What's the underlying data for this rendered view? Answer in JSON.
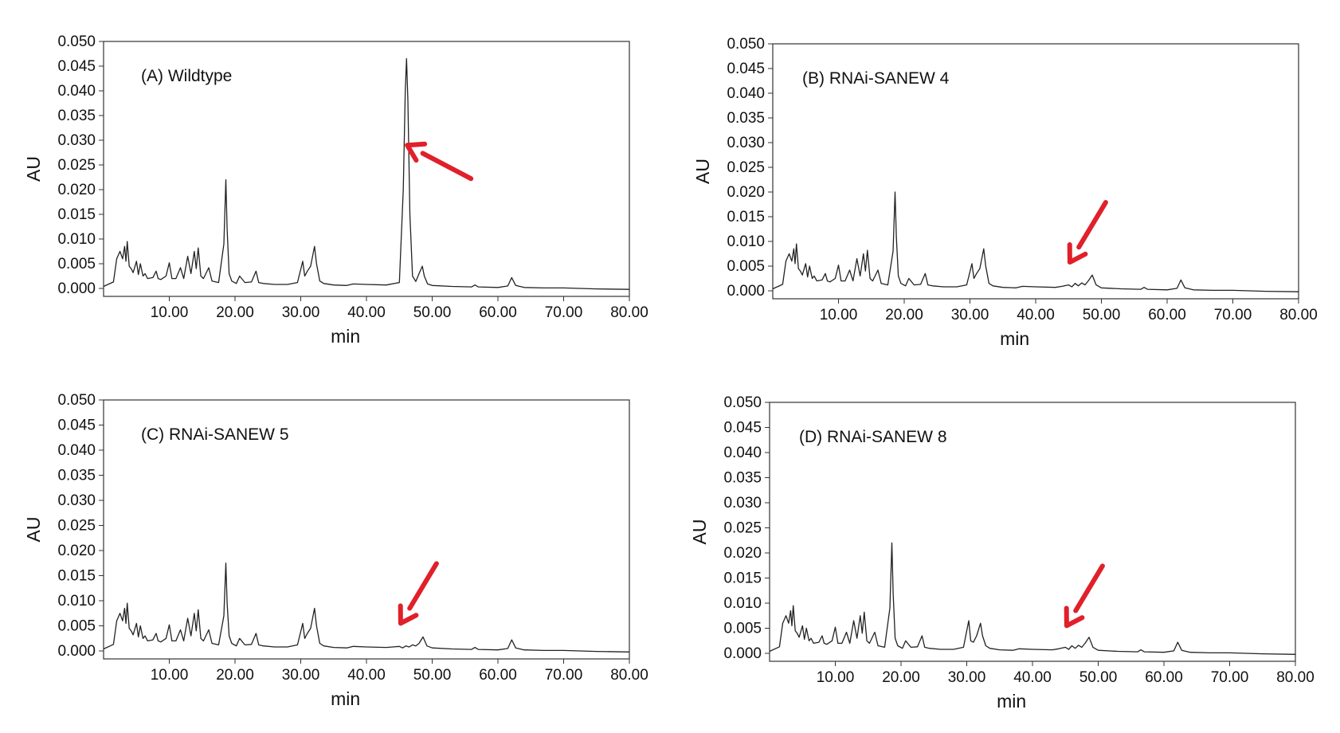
{
  "chart_data": [
    {
      "type": "line",
      "title": "(A) Wildtype",
      "xlabel": "min",
      "ylabel": "AU",
      "xlim": [
        0,
        80
      ],
      "ylim": [
        0,
        0.05
      ],
      "xticks": [
        "10.00",
        "20.00",
        "30.00",
        "40.00",
        "50.00",
        "60.00",
        "70.00",
        "80.00"
      ],
      "yticks": [
        "0.000",
        "0.005",
        "0.010",
        "0.015",
        "0.020",
        "0.025",
        "0.030",
        "0.035",
        "0.040",
        "0.045",
        "0.050"
      ],
      "grid": false,
      "annotation": {
        "type": "arrow",
        "color": "#e0202a",
        "target_x": 46.2,
        "target_y": 0.029
      },
      "series": [
        {
          "x": [
            0,
            1.5,
            2,
            2.5,
            2.9,
            3.2,
            3.4,
            3.6,
            3.9,
            4.2,
            4.5,
            5,
            5.3,
            5.6,
            6,
            6.3,
            6.7,
            7.5,
            8,
            8.3,
            8.7,
            9.5,
            10,
            10.4,
            11,
            11.7,
            12.2,
            12.8,
            13.3,
            13.8,
            14.1,
            14.4,
            14.8,
            15.2,
            16,
            16.5,
            17.5,
            18.3,
            18.6,
            18.8,
            19.1,
            19.5,
            20.2,
            20.7,
            21.5,
            22.5,
            23.2,
            23.6,
            24.3,
            26,
            28,
            29.5,
            30.3,
            30.6,
            31,
            31.5,
            32.1,
            32.4,
            32.9,
            33.5,
            35,
            37,
            38,
            40,
            43,
            45,
            45.6,
            45.9,
            46.1,
            46.3,
            46.6,
            47,
            47.5,
            48,
            48.5,
            48.8,
            49.3,
            50,
            53,
            56,
            56.5,
            57,
            60,
            61.5,
            62.1,
            62.7,
            64,
            67,
            70,
            75,
            80
          ],
          "y": [
            0.0004,
            0.0013,
            0.006,
            0.0075,
            0.006,
            0.0085,
            0.0055,
            0.0095,
            0.0045,
            0.004,
            0.0032,
            0.0055,
            0.0028,
            0.005,
            0.0025,
            0.003,
            0.002,
            0.0022,
            0.0035,
            0.002,
            0.0018,
            0.0025,
            0.0052,
            0.002,
            0.002,
            0.0042,
            0.002,
            0.0065,
            0.003,
            0.0075,
            0.004,
            0.0082,
            0.0025,
            0.002,
            0.0042,
            0.0015,
            0.0012,
            0.009,
            0.022,
            0.012,
            0.003,
            0.0015,
            0.001,
            0.0025,
            0.0012,
            0.0013,
            0.0035,
            0.0012,
            0.001,
            0.0008,
            0.0008,
            0.0012,
            0.0055,
            0.0025,
            0.0035,
            0.0045,
            0.0085,
            0.005,
            0.0015,
            0.001,
            0.0007,
            0.0006,
            0.0009,
            0.0008,
            0.0007,
            0.0012,
            0.02,
            0.04,
            0.0465,
            0.038,
            0.015,
            0.0025,
            0.0014,
            0.003,
            0.0045,
            0.0025,
            0.0009,
            0.0006,
            0.0004,
            0.0003,
            0.0007,
            0.0003,
            0.0002,
            0.0005,
            0.0022,
            0.0006,
            0.0002,
            0.0001,
            0.0001,
            -0.0001,
            -0.0002
          ]
        }
      ]
    },
    {
      "type": "line",
      "title": "(B) RNAi-SANEW 4",
      "xlabel": "min",
      "ylabel": "AU",
      "xlim": [
        0,
        80
      ],
      "ylim": [
        0,
        0.05
      ],
      "xticks": [
        "10.00",
        "20.00",
        "30.00",
        "40.00",
        "50.00",
        "60.00",
        "70.00",
        "80.00"
      ],
      "yticks": [
        "0.000",
        "0.005",
        "0.010",
        "0.015",
        "0.020",
        "0.025",
        "0.030",
        "0.035",
        "0.040",
        "0.045",
        "0.050"
      ],
      "grid": false,
      "annotation": {
        "type": "arrow",
        "color": "#e0202a",
        "target_x": 45.2,
        "target_y": 0.0058
      },
      "series": [
        {
          "x": [
            0,
            1.5,
            2,
            2.5,
            2.9,
            3.2,
            3.4,
            3.6,
            3.9,
            4.2,
            4.5,
            5,
            5.3,
            5.6,
            6,
            6.3,
            6.7,
            7.5,
            8,
            8.3,
            8.7,
            9.5,
            10,
            10.4,
            11,
            11.7,
            12.2,
            12.8,
            13.3,
            13.8,
            14.1,
            14.4,
            14.8,
            15.2,
            16,
            16.5,
            17.5,
            18.3,
            18.6,
            18.8,
            19.1,
            19.5,
            20.2,
            20.7,
            21.5,
            22.5,
            23.2,
            23.6,
            24.3,
            26,
            28,
            29.5,
            30.3,
            30.6,
            31,
            31.5,
            32.1,
            32.4,
            32.9,
            33.5,
            35,
            37,
            38,
            40,
            43,
            44,
            45,
            45.5,
            46,
            46.5,
            47,
            47.5,
            48,
            48.6,
            49.2,
            50,
            53,
            56,
            56.5,
            57,
            60,
            61.5,
            62.1,
            62.7,
            64,
            67,
            70,
            75,
            80
          ],
          "y": [
            0.0004,
            0.0013,
            0.006,
            0.0075,
            0.006,
            0.0085,
            0.0055,
            0.0095,
            0.0045,
            0.004,
            0.0032,
            0.0055,
            0.0028,
            0.005,
            0.0025,
            0.003,
            0.002,
            0.0022,
            0.0035,
            0.002,
            0.0018,
            0.0025,
            0.0052,
            0.002,
            0.002,
            0.0042,
            0.002,
            0.0065,
            0.003,
            0.0075,
            0.004,
            0.0082,
            0.0025,
            0.002,
            0.0042,
            0.0015,
            0.0012,
            0.008,
            0.02,
            0.011,
            0.003,
            0.0015,
            0.001,
            0.0025,
            0.0012,
            0.0013,
            0.0035,
            0.0012,
            0.001,
            0.0008,
            0.0008,
            0.0012,
            0.0055,
            0.0025,
            0.0035,
            0.0045,
            0.0085,
            0.005,
            0.0015,
            0.001,
            0.0007,
            0.0006,
            0.0009,
            0.0008,
            0.0007,
            0.0009,
            0.0012,
            0.0008,
            0.0015,
            0.001,
            0.0016,
            0.0012,
            0.002,
            0.0032,
            0.0012,
            0.0006,
            0.0004,
            0.0003,
            0.0007,
            0.0003,
            0.0002,
            0.0005,
            0.0022,
            0.0006,
            0.0002,
            0.0001,
            0.0001,
            -0.0001,
            -0.0002
          ]
        }
      ]
    },
    {
      "type": "line",
      "title": "(C) RNAi-SANEW 5",
      "xlabel": "min",
      "ylabel": "AU",
      "xlim": [
        0,
        80
      ],
      "ylim": [
        0,
        0.05
      ],
      "xticks": [
        "10.00",
        "20.00",
        "30.00",
        "40.00",
        "50.00",
        "60.00",
        "70.00",
        "80.00"
      ],
      "yticks": [
        "0.000",
        "0.005",
        "0.010",
        "0.015",
        "0.020",
        "0.025",
        "0.030",
        "0.035",
        "0.040",
        "0.045",
        "0.050"
      ],
      "grid": false,
      "annotation": {
        "type": "arrow",
        "color": "#e0202a",
        "target_x": 45.2,
        "target_y": 0.0055
      },
      "series": [
        {
          "x": [
            0,
            1.5,
            2,
            2.5,
            2.9,
            3.2,
            3.4,
            3.6,
            3.9,
            4.2,
            4.5,
            5,
            5.3,
            5.6,
            6,
            6.3,
            6.7,
            7.5,
            8,
            8.3,
            8.7,
            9.5,
            10,
            10.4,
            11,
            11.7,
            12.2,
            12.8,
            13.3,
            13.8,
            14.1,
            14.4,
            14.8,
            15.2,
            16,
            16.5,
            17.5,
            18.3,
            18.6,
            18.8,
            19.1,
            19.5,
            20.2,
            20.7,
            21.5,
            22.5,
            23.2,
            23.6,
            24.3,
            26,
            28,
            29.5,
            30.3,
            30.6,
            31,
            31.5,
            32.1,
            32.4,
            32.9,
            33.5,
            35,
            37,
            38,
            40,
            43,
            44,
            45,
            45.5,
            46,
            46.5,
            47,
            47.5,
            48,
            48.6,
            49.2,
            50,
            53,
            56,
            56.5,
            57,
            60,
            61.5,
            62.1,
            62.7,
            64,
            67,
            70,
            75,
            80
          ],
          "y": [
            0.0004,
            0.0013,
            0.006,
            0.0075,
            0.006,
            0.0085,
            0.0055,
            0.0095,
            0.0045,
            0.004,
            0.0032,
            0.0055,
            0.0028,
            0.005,
            0.0025,
            0.003,
            0.002,
            0.0022,
            0.0035,
            0.002,
            0.0018,
            0.0025,
            0.0052,
            0.002,
            0.002,
            0.0042,
            0.002,
            0.0065,
            0.003,
            0.0075,
            0.004,
            0.0082,
            0.0025,
            0.002,
            0.0042,
            0.0015,
            0.0012,
            0.007,
            0.0175,
            0.0095,
            0.003,
            0.0015,
            0.001,
            0.0025,
            0.0012,
            0.0013,
            0.0035,
            0.0012,
            0.001,
            0.0008,
            0.0008,
            0.0012,
            0.0055,
            0.0025,
            0.0035,
            0.0045,
            0.0085,
            0.005,
            0.0015,
            0.001,
            0.0007,
            0.0006,
            0.0009,
            0.0008,
            0.0007,
            0.0008,
            0.0009,
            0.0006,
            0.001,
            0.0008,
            0.0012,
            0.001,
            0.0015,
            0.0028,
            0.001,
            0.0006,
            0.0004,
            0.0003,
            0.0007,
            0.0003,
            0.0002,
            0.0005,
            0.0022,
            0.0006,
            0.0002,
            0.0001,
            0.0001,
            -0.0001,
            -0.0002
          ]
        }
      ]
    },
    {
      "type": "line",
      "title": "(D) RNAi-SANEW 8",
      "xlabel": "min",
      "ylabel": "AU",
      "xlim": [
        0,
        80
      ],
      "ylim": [
        0,
        0.05
      ],
      "xticks": [
        "10.00",
        "20.00",
        "30.00",
        "40.00",
        "50.00",
        "60.00",
        "70.00",
        "80.00"
      ],
      "yticks": [
        "0.000",
        "0.005",
        "0.010",
        "0.015",
        "0.020",
        "0.025",
        "0.030",
        "0.035",
        "0.040",
        "0.045",
        "0.050"
      ],
      "grid": false,
      "annotation": {
        "type": "arrow",
        "color": "#e0202a",
        "target_x": 45.2,
        "target_y": 0.0055
      },
      "series": [
        {
          "x": [
            0,
            1.5,
            2,
            2.5,
            2.9,
            3.2,
            3.4,
            3.6,
            3.9,
            4.2,
            4.5,
            5,
            5.3,
            5.6,
            6,
            6.3,
            6.7,
            7.5,
            8,
            8.3,
            8.7,
            9.5,
            10,
            10.4,
            11,
            11.7,
            12.2,
            12.8,
            13.3,
            13.8,
            14.1,
            14.4,
            14.8,
            15.2,
            16,
            16.5,
            17.5,
            18.3,
            18.6,
            18.8,
            19.1,
            19.5,
            20.2,
            20.7,
            21.5,
            22.5,
            23.2,
            23.6,
            24.3,
            26,
            28,
            29.5,
            30.3,
            30.6,
            31,
            31.5,
            32.1,
            32.4,
            32.9,
            33.5,
            35,
            37,
            38,
            40,
            43,
            44,
            45,
            45.5,
            46,
            46.5,
            47,
            47.5,
            48,
            48.6,
            49.2,
            50,
            53,
            56,
            56.5,
            57,
            60,
            61.5,
            62.1,
            62.7,
            64,
            67,
            70,
            75,
            80
          ],
          "y": [
            0.0004,
            0.0013,
            0.006,
            0.0075,
            0.006,
            0.0085,
            0.0055,
            0.0095,
            0.0045,
            0.004,
            0.0032,
            0.0055,
            0.0028,
            0.005,
            0.0025,
            0.003,
            0.002,
            0.0022,
            0.0035,
            0.002,
            0.0018,
            0.0025,
            0.0052,
            0.002,
            0.002,
            0.0042,
            0.002,
            0.0065,
            0.003,
            0.0075,
            0.004,
            0.0082,
            0.0025,
            0.002,
            0.0042,
            0.0015,
            0.0012,
            0.009,
            0.022,
            0.012,
            0.003,
            0.0015,
            0.001,
            0.0025,
            0.0012,
            0.0013,
            0.0035,
            0.0012,
            0.001,
            0.0008,
            0.0008,
            0.0012,
            0.0065,
            0.0025,
            0.0022,
            0.0035,
            0.006,
            0.0035,
            0.0015,
            0.001,
            0.0007,
            0.0006,
            0.0009,
            0.0008,
            0.0007,
            0.0009,
            0.0012,
            0.0008,
            0.0015,
            0.001,
            0.0016,
            0.0012,
            0.002,
            0.0032,
            0.0012,
            0.0006,
            0.0004,
            0.0003,
            0.0007,
            0.0003,
            0.0002,
            0.0005,
            0.0022,
            0.0006,
            0.0002,
            0.0001,
            0.0001,
            -0.0001,
            -0.0002
          ]
        }
      ]
    }
  ]
}
